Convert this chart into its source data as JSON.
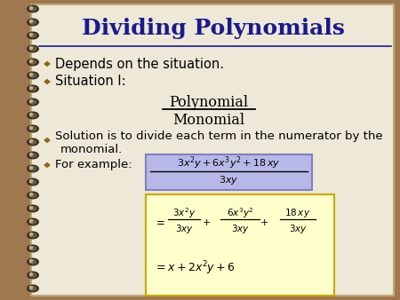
{
  "title": "Dividing Polynomials",
  "title_color": "#1a1a8c",
  "title_fontsize": 18,
  "bg_color": "#ede8d8",
  "slide_bg": "#a07850",
  "bullet_color": "#8b6914",
  "text_color": "#000000",
  "bullet1": "Depends on the situation.",
  "bullet2": "Situation I:",
  "fraction_num": "Polynomial",
  "fraction_den": "Monomial",
  "bullet3a": "Solution is to divide each term in the numerator by the",
  "bullet3b": "monomial.",
  "bullet4": "For example:",
  "box1_color": "#b8b8e8",
  "box1_edge": "#8080c0",
  "box2_color": "#ffffcc",
  "box2_edge": "#c8a800",
  "sep_line_color": "#1a1a8c",
  "spiral_outer": "#3a3020",
  "spiral_mid": "#6a5a40",
  "spiral_highlight": "#c0b090"
}
